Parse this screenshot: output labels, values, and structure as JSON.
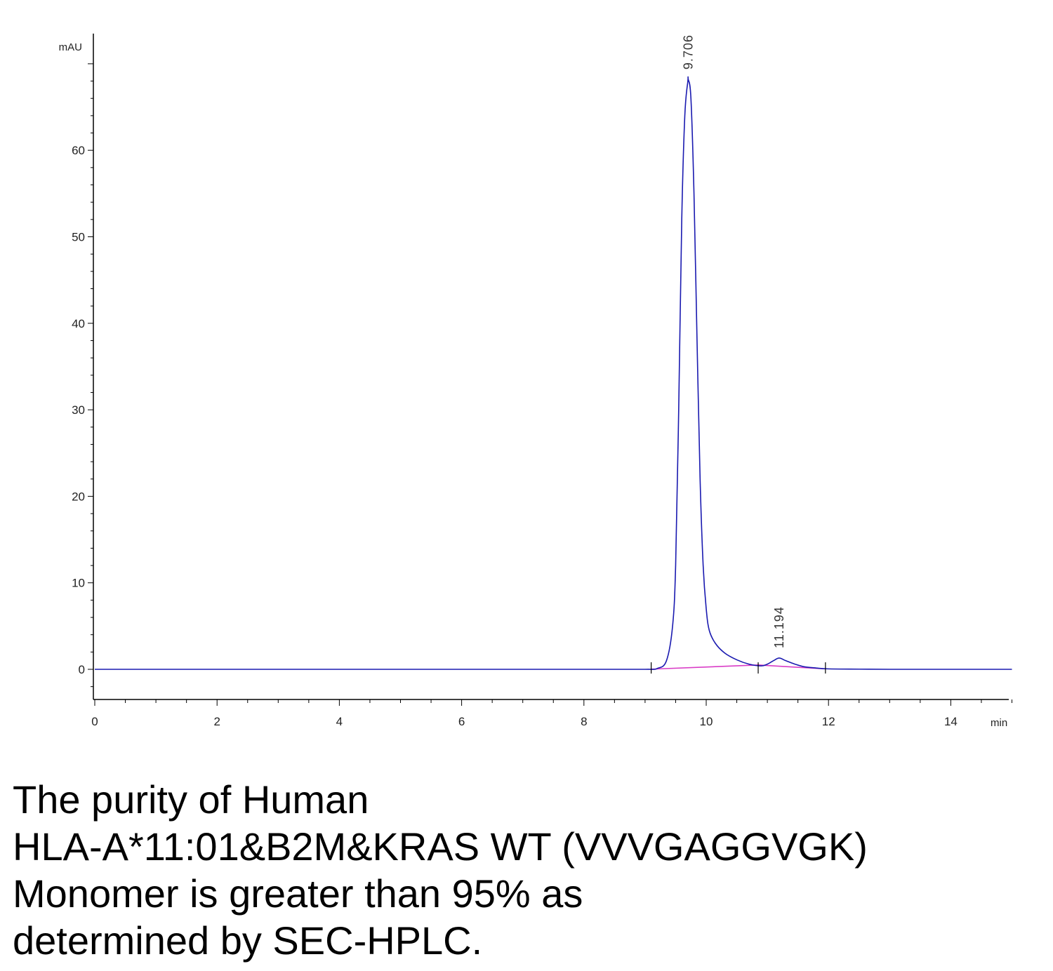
{
  "chart_data": {
    "type": "line",
    "title": "",
    "xlabel": "",
    "ylabel": "",
    "x_unit": "min",
    "y_unit": "mAU",
    "xlim": [
      0,
      15
    ],
    "ylim": [
      -3.5,
      73
    ],
    "x_ticks": [
      0,
      2,
      4,
      6,
      8,
      10,
      12,
      14
    ],
    "y_ticks": [
      0,
      10,
      20,
      30,
      40,
      50,
      60
    ],
    "grid": false,
    "series": [
      {
        "color": "#1a1ab0",
        "x": [
          0,
          2,
          4,
          6,
          8,
          9.0,
          9.2,
          9.35,
          9.45,
          9.5,
          9.55,
          9.6,
          9.65,
          9.7,
          9.706,
          9.75,
          9.8,
          9.85,
          9.9,
          9.95,
          10.0,
          10.05,
          10.15,
          10.3,
          10.5,
          10.7,
          10.9,
          11.0,
          11.1,
          11.194,
          11.3,
          11.45,
          11.6,
          11.8,
          12.0,
          12.5,
          13.0,
          14.0,
          15.0
        ],
        "y": [
          0,
          0,
          0,
          0,
          0,
          0,
          0.1,
          1.0,
          5.0,
          12.0,
          30.0,
          52.0,
          64.0,
          68.0,
          68.2,
          66.0,
          55.0,
          38.0,
          22.0,
          12.0,
          7.0,
          4.5,
          3.0,
          1.9,
          1.1,
          0.6,
          0.4,
          0.6,
          1.0,
          1.3,
          1.0,
          0.6,
          0.3,
          0.15,
          0.05,
          0.02,
          0,
          0,
          0
        ]
      }
    ],
    "baselines": [
      {
        "color": "#d93cc6",
        "x": [
          9.1,
          10.85
        ],
        "y": [
          0.02,
          0.5
        ]
      },
      {
        "color": "#d93cc6",
        "x": [
          10.85,
          11.95
        ],
        "y": [
          0.5,
          0.05
        ]
      }
    ],
    "peak_labels": [
      {
        "text": "9.706",
        "x": 9.706,
        "y": 68.2
      },
      {
        "text": "11.194",
        "x": 11.194,
        "y": 1.3
      }
    ],
    "integration_markers_x": [
      9.1,
      10.85,
      11.95
    ]
  },
  "caption": {
    "lines": [
      "The purity of Human",
      "HLA-A*11:01&B2M&KRAS WT (VVVGAGGVGK)",
      "Monomer is greater than 95% as",
      "determined by SEC-HPLC."
    ]
  }
}
